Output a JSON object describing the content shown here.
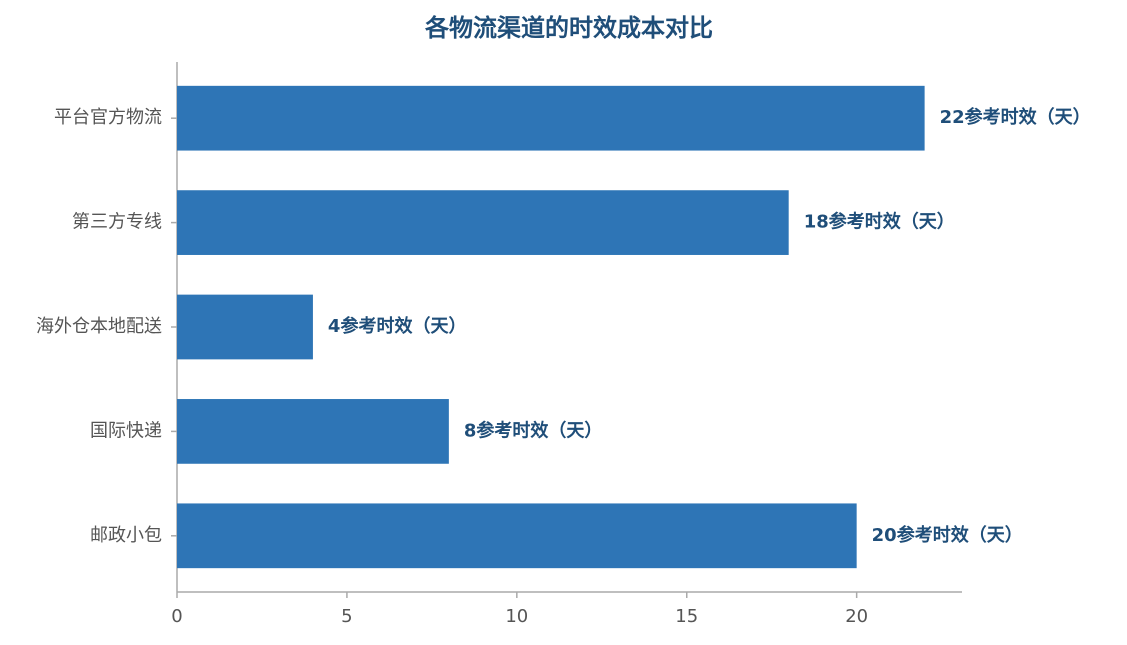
{
  "chart_data": {
    "type": "barh",
    "title": "各物流渠道的时效成本对比",
    "categories": [
      "平台官方物流",
      "第三方专线",
      "海外仓本地配送",
      "国际快递",
      "邮政小包"
    ],
    "values": [
      22,
      18,
      4,
      8,
      20
    ],
    "value_labels": [
      "22参考时效（天）",
      "18参考时效（天）",
      "4参考时效（天）",
      "8参考时效（天）",
      "20参考时效（天）"
    ],
    "color": "#2e75b6",
    "xlim": [
      0,
      23.1
    ],
    "xticks": [
      0,
      5,
      10,
      15,
      20
    ],
    "grid": false
  }
}
